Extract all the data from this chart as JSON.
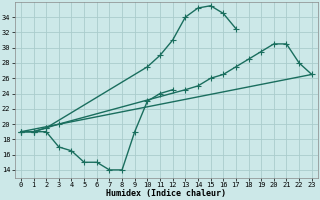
{
  "background_color": "#cce8e8",
  "grid_color": "#aacccc",
  "line_color": "#1a6e5e",
  "markersize": 2.5,
  "linewidth": 1.0,
  "xlabel": "Humidex (Indice chaleur)",
  "xlim": [
    -0.5,
    23.5
  ],
  "ylim": [
    13.0,
    36.0
  ],
  "yticks": [
    14,
    16,
    18,
    20,
    22,
    24,
    26,
    28,
    30,
    32,
    34
  ],
  "xticks": [
    0,
    1,
    2,
    3,
    4,
    5,
    6,
    7,
    8,
    9,
    10,
    11,
    12,
    13,
    14,
    15,
    16,
    17,
    18,
    19,
    20,
    21,
    22,
    23
  ],
  "line1_x": [
    0,
    1,
    2,
    10,
    11,
    12,
    13,
    14,
    15,
    16,
    17
  ],
  "line1_y": [
    19.0,
    19.0,
    19.5,
    27.5,
    29.0,
    31.0,
    34.0,
    35.2,
    35.5,
    34.5,
    32.5
  ],
  "line2_x": [
    0,
    1,
    2,
    3,
    13,
    14,
    15,
    16,
    17,
    18,
    19,
    20,
    21,
    22,
    23
  ],
  "line2_y": [
    19.0,
    19.0,
    19.5,
    20.0,
    24.5,
    25.0,
    26.0,
    26.5,
    27.5,
    28.5,
    29.5,
    30.5,
    30.5,
    28.0,
    26.5
  ],
  "line3_x": [
    0,
    23
  ],
  "line3_y": [
    19.0,
    26.5
  ],
  "line4_x": [
    0,
    1,
    2,
    3,
    4,
    5,
    6,
    7,
    8,
    9,
    10,
    11,
    12
  ],
  "line4_y": [
    19.0,
    19.0,
    19.0,
    17.0,
    16.5,
    15.0,
    15.0,
    14.0,
    14.0,
    19.0,
    23.0,
    24.0,
    24.5
  ]
}
